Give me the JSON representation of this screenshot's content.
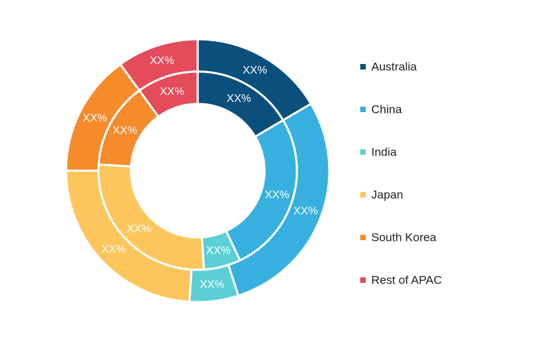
{
  "chart_data": {
    "type": "pie",
    "variant": "nested-donut",
    "legend_position": "right",
    "categories": [
      "Australia",
      "China",
      "India",
      "Japan",
      "South Korea",
      "Rest of APAC"
    ],
    "colors": [
      "#0b4f7c",
      "#37b0e0",
      "#5ccfd6",
      "#fdc65c",
      "#f58b2b",
      "#e44b5b"
    ],
    "series": [
      {
        "ring": "outer",
        "values": [
          16.5,
          28.5,
          6.0,
          24.0,
          15.0,
          10.0
        ],
        "labels": [
          "XX%",
          "XX%",
          "XX%",
          "XX%",
          "XX%",
          "XX%"
        ]
      },
      {
        "ring": "inner",
        "values": [
          16.5,
          26.5,
          6.0,
          27.0,
          14.0,
          10.0
        ],
        "labels": [
          "XX%",
          "XX%",
          "XX%",
          "XX%",
          "XX%",
          "XX%"
        ]
      }
    ]
  }
}
